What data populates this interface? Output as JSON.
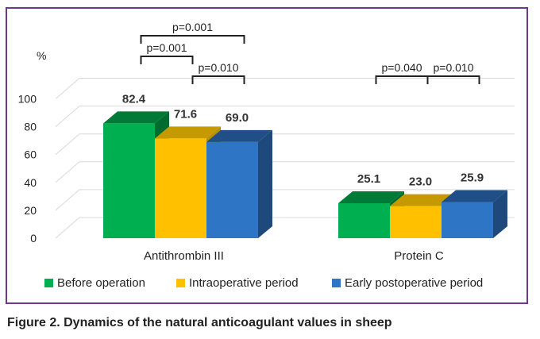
{
  "caption": "Figure 2. Dynamics of the natural anticoagulant values in sheep",
  "chart_data": {
    "type": "bar",
    "ylabel": "%",
    "ylim": [
      0,
      100
    ],
    "yticks": [
      0,
      20,
      40,
      60,
      80,
      100
    ],
    "grid": true,
    "legend_position": "bottom",
    "categories": [
      "Antithrombin III",
      "Protein C"
    ],
    "series": [
      {
        "name": "Before operation",
        "values": [
          82.4,
          25.1
        ],
        "labels": [
          "82.4",
          "25.1"
        ],
        "color": "#00b050",
        "top_color": "#007a36",
        "side_color": "#006b2f"
      },
      {
        "name": "Intraoperative period",
        "values": [
          71.6,
          23.0
        ],
        "labels": [
          "71.6",
          "23.0"
        ],
        "color": "#ffc000",
        "top_color": "#c49a00",
        "side_color": "#b88f00"
      },
      {
        "name": "Early postoperative period",
        "values": [
          69.0,
          25.9
        ],
        "labels": [
          "69.0",
          "25.9"
        ],
        "color": "#2e75c6",
        "top_color": "#1f4f86",
        "side_color": "#1f497d"
      }
    ],
    "annotations": [
      {
        "text": "p=0.001",
        "category": 0,
        "from_series": 0,
        "to_series": 2,
        "level": 3
      },
      {
        "text": "p=0.001",
        "category": 0,
        "from_series": 0,
        "to_series": 1,
        "level": 2
      },
      {
        "text": "p=0.010",
        "category": 0,
        "from_series": 1,
        "to_series": 2,
        "level": 1
      },
      {
        "text": "p=0.040",
        "category": 1,
        "from_series": 0,
        "to_series": 1,
        "level": 1
      },
      {
        "text": "p=0.010",
        "category": 1,
        "from_series": 1,
        "to_series": 2,
        "level": 1
      }
    ]
  }
}
